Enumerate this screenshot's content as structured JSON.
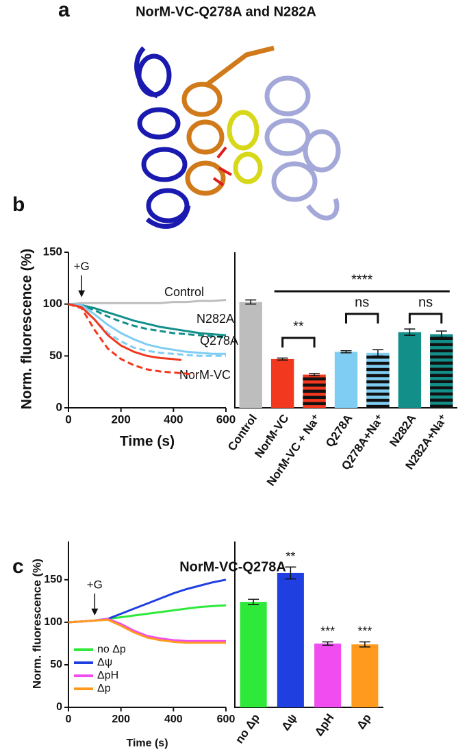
{
  "figure": {
    "panels": [
      {
        "label": "a",
        "title": "NorM-VC-Q278A and N282A"
      },
      {
        "label": "b"
      },
      {
        "label": "c",
        "title": "NorM-VC-Q278A"
      }
    ]
  },
  "chart_data": [
    {
      "type": "line",
      "xlabel": "Time (s)",
      "ylabel": "Norm. fluorescence (%)",
      "xlim": [
        0,
        600
      ],
      "xticks": [
        0,
        200,
        400,
        600
      ],
      "ylim": [
        0,
        150
      ],
      "yticks": [
        0,
        50,
        100,
        150
      ],
      "annotations": [
        {
          "text": "+G",
          "x": 50
        }
      ],
      "series": [
        {
          "name": "Control",
          "color": "#bdbdbd",
          "x": [
            0,
            50,
            100,
            150,
            200,
            250,
            300,
            350,
            400,
            450,
            500,
            550,
            600
          ],
          "values": [
            100,
            101,
            101,
            101,
            101,
            101,
            101,
            101,
            102,
            102,
            103,
            103,
            104
          ]
        },
        {
          "name": "N282A",
          "color": "#138f8a",
          "x": [
            0,
            50,
            100,
            150,
            200,
            250,
            300,
            350,
            400,
            450,
            500,
            550,
            600
          ],
          "values": [
            100,
            99,
            96,
            92,
            88,
            84,
            81,
            78,
            76,
            74,
            72,
            71,
            70
          ]
        },
        {
          "color": "#138f8a",
          "dashed": true,
          "x": [
            0,
            50,
            100,
            150,
            200,
            250,
            300,
            350,
            400,
            450,
            500,
            550,
            600
          ],
          "values": [
            100,
            99,
            94,
            88,
            83,
            79,
            76,
            74,
            72,
            71,
            70,
            69,
            68
          ]
        },
        {
          "name": "Q278A",
          "color": "#7fcdf2",
          "x": [
            0,
            50,
            100,
            150,
            200,
            250,
            300,
            350,
            400,
            450,
            500,
            550,
            600
          ],
          "values": [
            100,
            99,
            90,
            80,
            72,
            66,
            61,
            58,
            56,
            54,
            53,
            52,
            52
          ]
        },
        {
          "color": "#7fcdf2",
          "dashed": true,
          "x": [
            0,
            50,
            100,
            150,
            200,
            250,
            300,
            350,
            400,
            450,
            500,
            550,
            600
          ],
          "values": [
            100,
            98,
            85,
            72,
            64,
            58,
            55,
            53,
            52,
            51,
            50,
            50,
            50
          ]
        },
        {
          "name": "NorM-VC",
          "color": "#f2381f",
          "x": [
            0,
            50,
            100,
            150,
            200,
            250,
            300,
            350,
            400,
            430
          ],
          "values": [
            100,
            97,
            85,
            70,
            60,
            54,
            50,
            48,
            47,
            46
          ]
        },
        {
          "color": "#f2381f",
          "dashed": true,
          "x": [
            0,
            50,
            100,
            150,
            200,
            250,
            300,
            350,
            400,
            450,
            480
          ],
          "values": [
            100,
            96,
            75,
            57,
            47,
            41,
            37,
            35,
            34,
            33,
            32
          ]
        }
      ]
    },
    {
      "type": "bar",
      "ylim": [
        0,
        150
      ],
      "categories": [
        "Control",
        "NorM-VC",
        "NorM-VC + Na⁺",
        "Q278A",
        "Q278A+Na⁺",
        "N282A",
        "N282A+Na⁺"
      ],
      "values": [
        102,
        47,
        32,
        54,
        53,
        73,
        71
      ],
      "errors": [
        2,
        1,
        1,
        1,
        3,
        3,
        3
      ],
      "colors": [
        "#bdbdbd",
        "#f2381f",
        "#f2381f",
        "#7fcdf2",
        "#7fcdf2",
        "#138f8a",
        "#138f8a"
      ],
      "hatched": [
        false,
        false,
        true,
        false,
        true,
        false,
        true
      ],
      "significance": [
        {
          "label": "****",
          "between": [
            "NorM-VC",
            "N282A+Na⁺"
          ]
        },
        {
          "label": "**",
          "between": [
            "NorM-VC",
            "NorM-VC + Na⁺"
          ]
        },
        {
          "label": "ns",
          "between": [
            "Q278A",
            "Q278A+Na⁺"
          ]
        },
        {
          "label": "ns",
          "between": [
            "N282A",
            "N282A+Na⁺"
          ]
        }
      ]
    },
    {
      "type": "line",
      "xlabel": "Time (s)",
      "ylabel": "Norm. fluorescence (%)",
      "xlim": [
        0,
        600
      ],
      "xticks": [
        0,
        200,
        400,
        600
      ],
      "ylim": [
        0,
        195
      ],
      "yticks": [
        0,
        50,
        100,
        150
      ],
      "legend": "lower left",
      "annotations": [
        {
          "text": "+G",
          "x": 100
        }
      ],
      "series": [
        {
          "name": "no Δp",
          "color": "#2ee83a",
          "x": [
            0,
            50,
            100,
            150,
            200,
            250,
            300,
            350,
            400,
            450,
            500,
            550,
            600
          ],
          "values": [
            100,
            101,
            102,
            104,
            106,
            108,
            110,
            112,
            114,
            116,
            118,
            119,
            120
          ]
        },
        {
          "name": "Δψ",
          "color": "#1f3fe0",
          "x": [
            0,
            50,
            100,
            150,
            200,
            250,
            300,
            350,
            400,
            450,
            500,
            550,
            600
          ],
          "values": [
            100,
            101,
            102,
            104,
            110,
            116,
            122,
            128,
            134,
            139,
            143,
            147,
            150
          ]
        },
        {
          "name": "ΔpH",
          "color": "#f04cf0",
          "x": [
            0,
            50,
            100,
            150,
            200,
            250,
            300,
            350,
            400,
            450,
            500,
            550,
            600
          ],
          "values": [
            100,
            101,
            102,
            104,
            98,
            90,
            84,
            81,
            79,
            78,
            78,
            78,
            78
          ]
        },
        {
          "name": "Δp",
          "color": "#ff9a1f",
          "x": [
            0,
            50,
            100,
            150,
            200,
            250,
            300,
            350,
            400,
            450,
            500,
            550,
            600
          ],
          "values": [
            100,
            101,
            102,
            103,
            96,
            88,
            82,
            79,
            77,
            76,
            76,
            76,
            76
          ]
        }
      ]
    },
    {
      "type": "bar",
      "ylim": [
        0,
        195
      ],
      "categories": [
        "no Δp",
        "Δψ",
        "ΔpH",
        "Δp"
      ],
      "values": [
        124,
        158,
        75,
        74
      ],
      "errors": [
        3,
        7,
        2,
        3
      ],
      "colors": [
        "#2ee83a",
        "#1f3fe0",
        "#f04cf0",
        "#ff9a1f"
      ],
      "hatched": [
        false,
        false,
        false,
        false
      ],
      "bar_annotations": [
        null,
        "**",
        "***",
        "***"
      ]
    }
  ]
}
